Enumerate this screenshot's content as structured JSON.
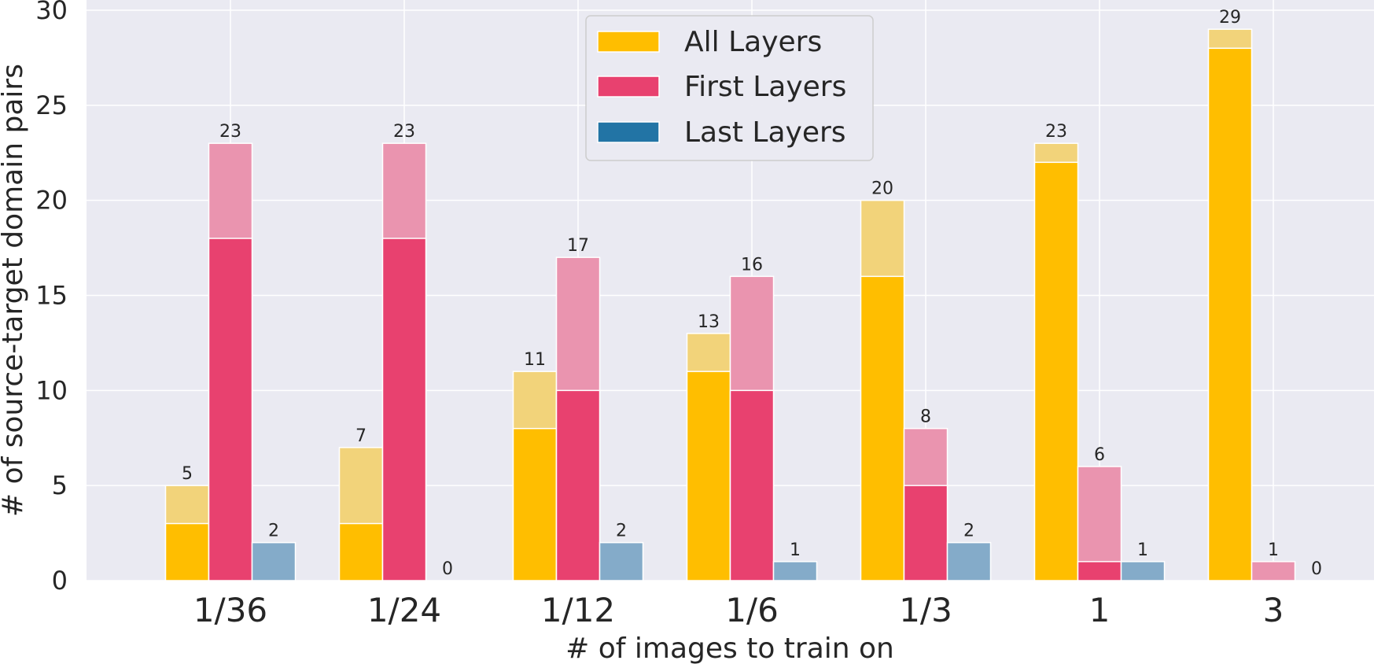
{
  "chart_data": {
    "type": "bar",
    "xlabel": "# of images to train on",
    "ylabel": "# of source-target domain pairs",
    "ylim": [
      0,
      30
    ],
    "yticks": [
      0,
      5,
      10,
      15,
      20,
      25,
      30
    ],
    "categories": [
      "1/36",
      "1/24",
      "1/12",
      "1/6",
      "1/3",
      "1",
      "3"
    ],
    "grid": true,
    "legend_position": "top-center",
    "series": [
      {
        "name": "All Layers",
        "color": "#FFBE00",
        "light_color": "#F2D37A",
        "values": [
          5,
          7,
          11,
          13,
          20,
          23,
          29
        ],
        "solid_values": [
          3,
          3,
          8,
          11,
          16,
          22,
          28
        ]
      },
      {
        "name": "First Layers",
        "color": "#E8416F",
        "light_color": "#EA94AF",
        "values": [
          23,
          23,
          17,
          16,
          8,
          6,
          1
        ],
        "solid_values": [
          18,
          18,
          10,
          10,
          5,
          1,
          0
        ]
      },
      {
        "name": "Last Layers",
        "color": "#2274A5",
        "light_color": "#84ABC9",
        "values": [
          2,
          0,
          2,
          1,
          2,
          1,
          0
        ],
        "solid_values": [
          0,
          0,
          0,
          0,
          0,
          0,
          0
        ]
      }
    ]
  }
}
